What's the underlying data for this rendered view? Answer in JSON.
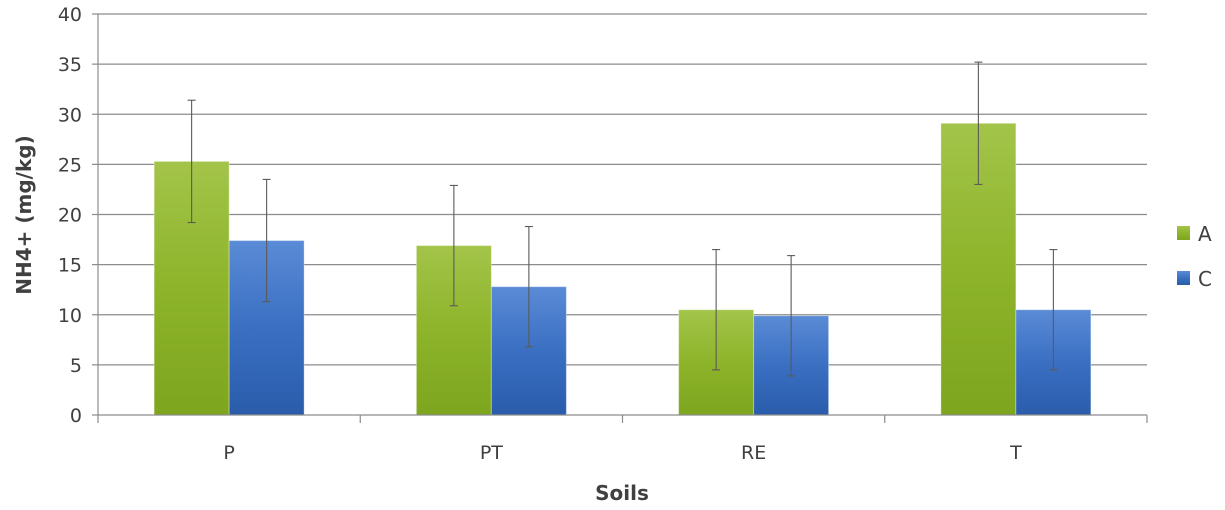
{
  "chart_data": {
    "type": "bar",
    "categories": [
      "P",
      "PT",
      "RE",
      "T"
    ],
    "series": [
      {
        "name": "A",
        "color": "#8db42a",
        "values": [
          25.3,
          16.9,
          10.5,
          29.1
        ],
        "errors": [
          6.1,
          6.0,
          6.0,
          6.1
        ]
      },
      {
        "name": "C",
        "color": "#3a6fc2",
        "values": [
          17.4,
          12.8,
          9.9,
          10.5
        ],
        "errors": [
          6.1,
          6.0,
          6.0,
          6.0
        ]
      }
    ],
    "title": "",
    "xlabel": "Soils",
    "ylabel": "NH4+ (mg/kg)",
    "ylim": [
      0,
      40
    ],
    "yticks": [
      "0",
      "5",
      "10",
      "15",
      "20",
      "25",
      "30",
      "35",
      "40"
    ],
    "grid": true,
    "legend_position": "right"
  }
}
